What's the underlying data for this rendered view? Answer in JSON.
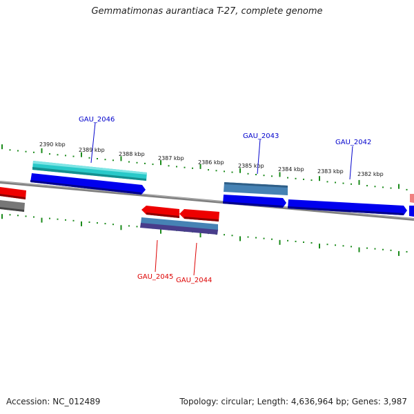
{
  "title": "Gemmatimonas aurantiaca T-27, complete genome",
  "footer": {
    "accession": "Accession: NC_012489",
    "summary": "Topology: circular; Length: 4,636,964 bp; Genes: 3,987"
  },
  "colors": {
    "backbone": "#7f7f7f",
    "ticks": "#1a8a1a",
    "plus_label": "#0000cc",
    "minus_label": "#dd0000",
    "cds_blue": "#0000ee",
    "cds_cyan": "#29c9c9",
    "cds_steel": "#4682b4",
    "cds_red": "#ee0000",
    "cds_gray": "#777777",
    "cds_purple": "#483d8b"
  },
  "scale": {
    "ticks": [
      "2390 kbp",
      "2389 kbp",
      "2388 kbp",
      "2387 kbp",
      "2386 kbp",
      "2385 kbp",
      "2384 kbp",
      "2383 kbp",
      "2382 kbp"
    ]
  },
  "gene_labels": [
    {
      "name": "GAU_2046",
      "strand": "plus"
    },
    {
      "name": "GAU_2043",
      "strand": "plus"
    },
    {
      "name": "GAU_2042",
      "strand": "plus"
    },
    {
      "name": "GAU_2045",
      "strand": "minus"
    },
    {
      "name": "GAU_2044",
      "strand": "minus"
    }
  ]
}
